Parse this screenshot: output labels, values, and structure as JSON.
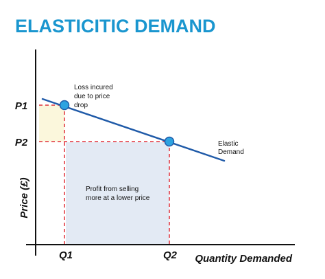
{
  "title": "ELASTICITIC DEMAND",
  "colors": {
    "title": "#1a96cf",
    "curve": "#1f5aa8",
    "points": "#2ea3e0",
    "guides": "#e0303a",
    "loss_area": "#fbf7dc",
    "profit_area": "#e3eaf4",
    "axes": "#111111"
  },
  "axes": {
    "x_label": "Quantity Demanded",
    "y_label": "Price (£)",
    "x_ticks": [
      "Q1",
      "Q2"
    ],
    "y_ticks": [
      "P1",
      "P2"
    ]
  },
  "curve_label": [
    "Elastic",
    "Demand"
  ],
  "annotations": {
    "loss": [
      "Loss incured",
      "due to price",
      "drop"
    ],
    "profit": [
      "Profit from selling",
      "more at a lower price"
    ]
  },
  "points": [
    {
      "name": "P1-Q1",
      "price": "P1",
      "quantity": "Q1"
    },
    {
      "name": "P2-Q2",
      "price": "P2",
      "quantity": "Q2"
    }
  ]
}
